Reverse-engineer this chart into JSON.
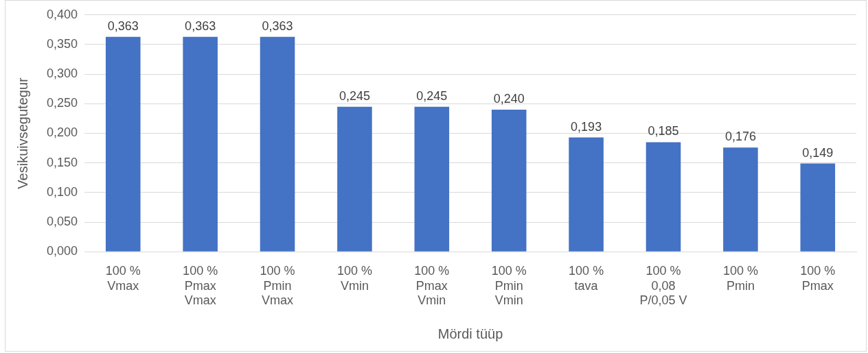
{
  "chart_data": {
    "type": "bar",
    "xlabel": "Mördi tüüp",
    "ylabel": "Vesikuivsegutegur",
    "categories": [
      "100 %\nVmax",
      "100 %\nPmax\nVmax",
      "100 %\nPmin\nVmax",
      "100 %\nVmin",
      "100 %\nPmax\nVmin",
      "100 %\nPmin\nVmin",
      "100 %\ntava",
      "100 %\n0,08\nP/0,05 V",
      "100 %\nPmin",
      "100 %\nPmax"
    ],
    "values": [
      0.363,
      0.363,
      0.363,
      0.245,
      0.245,
      0.24,
      0.193,
      0.185,
      0.176,
      0.149
    ],
    "value_labels": [
      "0,363",
      "0,363",
      "0,363",
      "0,245",
      "0,245",
      "0,240",
      "0,193",
      "0,185",
      "0,176",
      "0,149"
    ],
    "color": "#4472c4",
    "ylim": [
      0,
      0.4
    ],
    "yticks": [
      {
        "value": 0,
        "label": "0,000"
      },
      {
        "value": 0.05,
        "label": "0,050"
      },
      {
        "value": 0.1,
        "label": "0,100"
      },
      {
        "value": 0.15,
        "label": "0,150"
      },
      {
        "value": 0.2,
        "label": "0,200"
      },
      {
        "value": 0.25,
        "label": "0,250"
      },
      {
        "value": 0.3,
        "label": "0,300"
      },
      {
        "value": 0.35,
        "label": "0,350"
      },
      {
        "value": 0.4,
        "label": "0,400"
      }
    ],
    "grid": "y",
    "legend": false
  }
}
